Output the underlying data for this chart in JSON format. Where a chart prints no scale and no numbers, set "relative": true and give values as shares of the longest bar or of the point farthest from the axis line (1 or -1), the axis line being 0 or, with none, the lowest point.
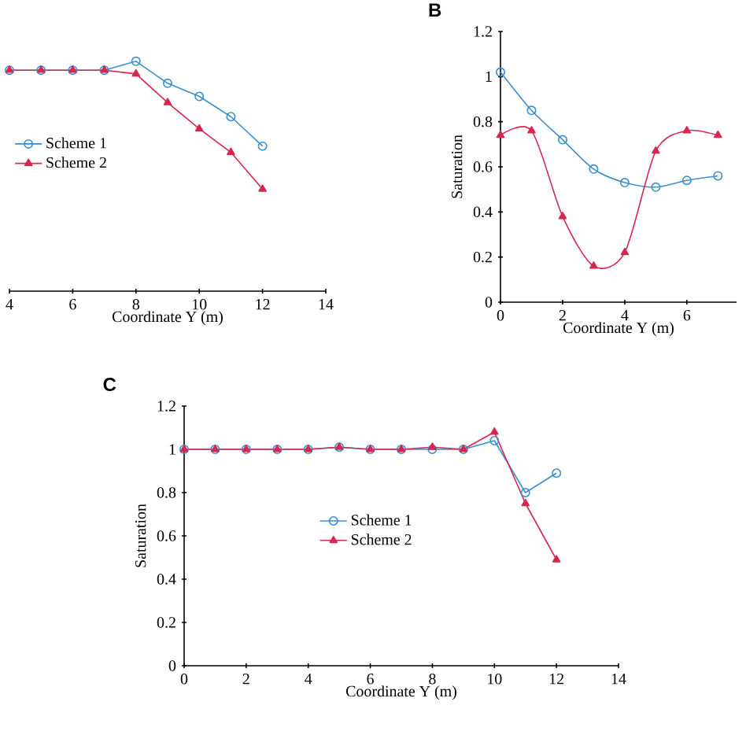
{
  "chart_data": [
    {
      "type": "line",
      "relative": true,
      "xlabel": "Coordinate Y (m)",
      "x": [
        4,
        5,
        6,
        7,
        8,
        9,
        10,
        11,
        12
      ],
      "xlim": [
        4,
        14
      ],
      "xticks": [
        4,
        6,
        8,
        10,
        12,
        14
      ],
      "legend": "left",
      "series": [
        {
          "name": "Scheme 1",
          "color": "#3a8fd0",
          "marker": "circle",
          "values": [
            0.961,
            0.961,
            0.961,
            0.961,
            1.0,
            0.904,
            0.847,
            0.759,
            0.631
          ]
        },
        {
          "name": "Scheme 2",
          "color": "#d6274f",
          "marker": "triangle",
          "values": [
            0.961,
            0.961,
            0.961,
            0.961,
            0.945,
            0.82,
            0.706,
            0.604,
            0.444
          ]
        }
      ]
    },
    {
      "type": "line",
      "title": "B",
      "xlabel": "Coordinate Y (m)",
      "ylabel": "Saturation",
      "x": [
        0,
        1,
        2,
        3,
        4,
        5,
        6,
        7
      ],
      "xlim": [
        0,
        7.6
      ],
      "xticks": [
        0,
        2,
        4,
        6
      ],
      "ylim": [
        0,
        1.2
      ],
      "yticks": [
        0,
        0.2,
        0.4,
        0.6,
        0.8,
        1,
        1.2
      ],
      "series": [
        {
          "color": "#3a8fd0",
          "marker": "circle",
          "values": [
            1.02,
            0.85,
            0.72,
            0.59,
            0.53,
            0.51,
            0.54,
            0.56
          ]
        },
        {
          "color": "#d6274f",
          "marker": "triangle",
          "values": [
            0.74,
            0.76,
            0.38,
            0.16,
            0.22,
            0.67,
            0.76,
            0.74
          ]
        }
      ]
    },
    {
      "type": "line",
      "title": "C",
      "xlabel": "Coordinate Y (m)",
      "ylabel": "Saturation",
      "x": [
        0,
        1,
        2,
        3,
        4,
        5,
        6,
        7,
        8,
        9,
        10,
        11,
        12
      ],
      "xlim": [
        0,
        14
      ],
      "xticks": [
        0,
        2,
        4,
        6,
        8,
        10,
        12,
        14
      ],
      "ylim": [
        0,
        1.2
      ],
      "yticks": [
        0,
        0.2,
        0.4,
        0.6,
        0.8,
        1,
        1.2
      ],
      "legend": "center",
      "series": [
        {
          "name": "Scheme 1",
          "color": "#3a8fd0",
          "marker": "circle",
          "values": [
            1,
            1,
            1,
            1,
            1,
            1.01,
            1,
            1,
            1,
            1,
            1.04,
            0.8,
            0.89
          ]
        },
        {
          "name": "Scheme 2",
          "color": "#d6274f",
          "marker": "triangle",
          "values": [
            1,
            1,
            1,
            1,
            1,
            1.01,
            1,
            1,
            1.01,
            1,
            1.08,
            0.75,
            0.49
          ]
        }
      ]
    }
  ]
}
